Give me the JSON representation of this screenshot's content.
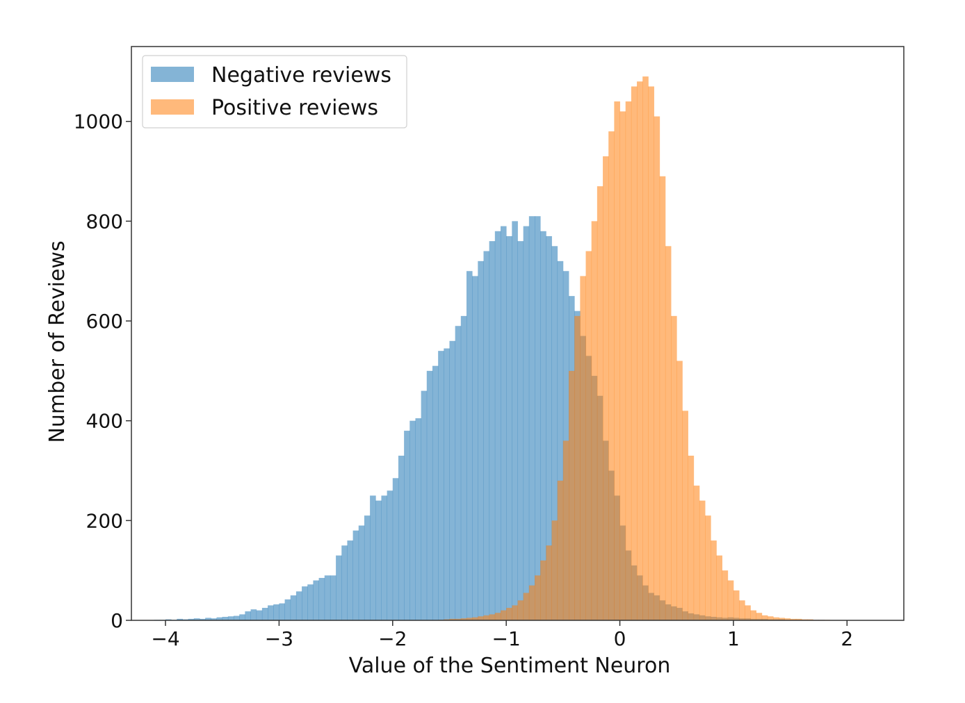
{
  "chart_data": {
    "type": "histogram",
    "title": "",
    "xlabel": "Value of the Sentiment Neuron",
    "ylabel": "Number of Reviews",
    "xlim": [
      -4.3,
      2.5
    ],
    "ylim": [
      0,
      1150
    ],
    "x_tick_values": [
      -4,
      -3,
      -2,
      -1,
      0,
      1,
      2
    ],
    "x_tick_labels": [
      "−4",
      "−3",
      "−2",
      "−1",
      "0",
      "1",
      "2"
    ],
    "y_tick_values": [
      0,
      200,
      400,
      600,
      800,
      1000
    ],
    "y_tick_labels": [
      "0",
      "200",
      "400",
      "600",
      "800",
      "1000"
    ],
    "legend_position": "top-left",
    "series": [
      {
        "name": "Negative reviews",
        "color": "#1f77b4",
        "alpha": 0.55,
        "bin_start": -4.1,
        "bin_width": 0.05,
        "values": [
          1,
          1,
          2,
          1,
          3,
          2,
          3,
          4,
          3,
          5,
          4,
          6,
          7,
          8,
          9,
          12,
          18,
          22,
          20,
          25,
          30,
          32,
          34,
          42,
          50,
          58,
          68,
          72,
          80,
          85,
          90,
          90,
          130,
          150,
          160,
          180,
          190,
          210,
          250,
          240,
          250,
          260,
          285,
          330,
          380,
          400,
          405,
          460,
          500,
          510,
          540,
          545,
          560,
          590,
          610,
          700,
          690,
          720,
          740,
          760,
          780,
          790,
          770,
          800,
          760,
          790,
          810,
          810,
          780,
          770,
          750,
          720,
          700,
          650,
          620,
          570,
          530,
          490,
          450,
          360,
          300,
          250,
          190,
          140,
          110,
          90,
          70,
          55,
          50,
          40,
          32,
          28,
          25,
          18,
          14,
          12,
          10,
          8,
          7,
          6,
          5,
          6,
          5,
          4,
          4,
          3,
          3,
          3,
          2,
          2,
          2,
          1,
          1,
          1,
          1,
          1,
          1,
          1,
          0,
          0,
          0,
          0,
          0,
          0,
          0,
          0,
          0,
          0
        ]
      },
      {
        "name": "Positive reviews",
        "color": "#ff7f0e",
        "alpha": 0.55,
        "bin_start": -1.6,
        "bin_width": 0.05,
        "values": [
          1,
          2,
          3,
          3,
          4,
          5,
          6,
          8,
          10,
          12,
          15,
          20,
          25,
          30,
          40,
          55,
          70,
          90,
          120,
          150,
          200,
          280,
          360,
          500,
          610,
          690,
          740,
          800,
          870,
          930,
          980,
          1040,
          1020,
          1040,
          1070,
          1080,
          1090,
          1070,
          1010,
          890,
          750,
          610,
          520,
          420,
          330,
          270,
          240,
          210,
          160,
          130,
          100,
          80,
          60,
          40,
          30,
          20,
          15,
          10,
          8,
          6,
          5,
          4,
          3,
          3,
          2,
          2,
          1,
          1,
          1
        ]
      }
    ]
  }
}
